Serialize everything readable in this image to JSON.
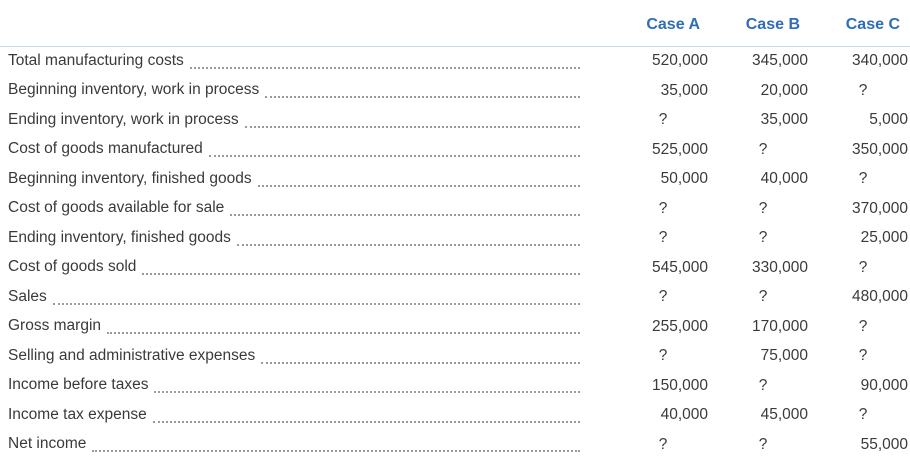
{
  "columns": [
    "Case A",
    "Case B",
    "Case C"
  ],
  "rows": [
    {
      "label": "Total manufacturing costs",
      "values": [
        "520,000",
        "345,000",
        "340,000"
      ]
    },
    {
      "label": "Beginning inventory, work in process",
      "values": [
        "35,000",
        "20,000",
        "?"
      ]
    },
    {
      "label": "Ending inventory, work in process",
      "values": [
        "?",
        "35,000",
        "5,000"
      ]
    },
    {
      "label": "Cost of goods manufactured",
      "values": [
        "525,000",
        "?",
        "350,000"
      ]
    },
    {
      "label": "Beginning inventory, finished goods",
      "values": [
        "50,000",
        "40,000",
        "?"
      ]
    },
    {
      "label": "Cost of goods available for sale",
      "values": [
        "?",
        "?",
        "370,000"
      ]
    },
    {
      "label": "Ending inventory, finished goods",
      "values": [
        "?",
        "?",
        "25,000"
      ]
    },
    {
      "label": "Cost of goods sold",
      "values": [
        "545,000",
        "330,000",
        "?"
      ]
    },
    {
      "label": "Sales",
      "values": [
        "?",
        "?",
        "480,000"
      ]
    },
    {
      "label": "Gross margin",
      "values": [
        "255,000",
        "170,000",
        "?"
      ]
    },
    {
      "label": "Selling and administrative expenses",
      "values": [
        "?",
        "75,000",
        "?"
      ]
    },
    {
      "label": "Income before taxes",
      "values": [
        "150,000",
        "?",
        "90,000"
      ]
    },
    {
      "label": "Income tax expense",
      "values": [
        "40,000",
        "45,000",
        "?"
      ]
    },
    {
      "label": "Net income",
      "values": [
        "?",
        "?",
        "55,000"
      ]
    }
  ]
}
